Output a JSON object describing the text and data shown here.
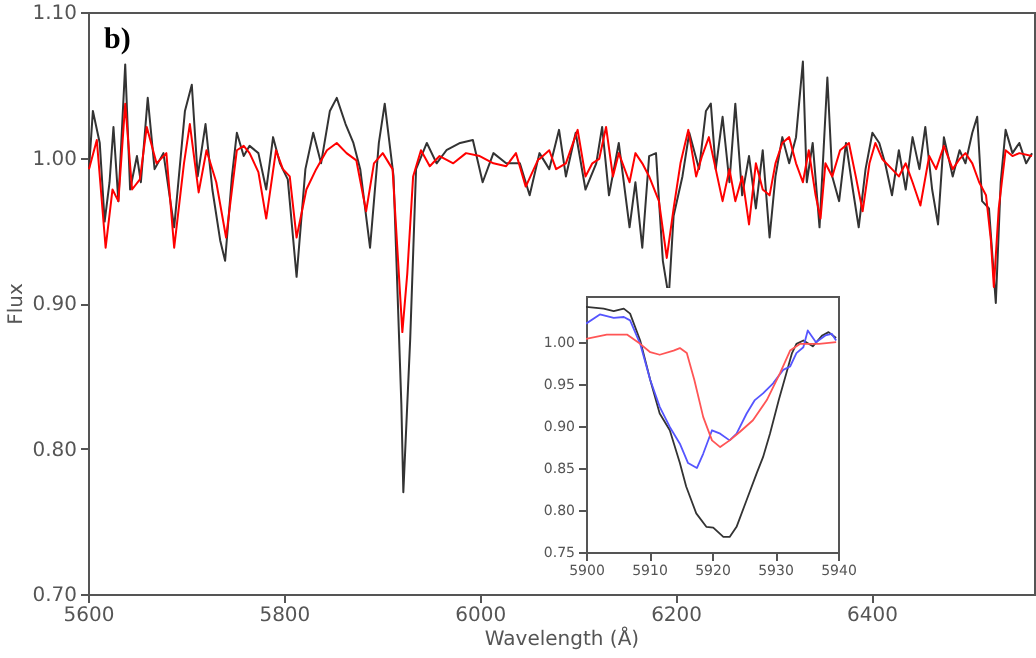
{
  "chart_data": [
    {
      "type": "line",
      "xlabel": "Wavelength (Å)",
      "ylabel": "Flux",
      "annotations": [
        "b)"
      ],
      "xlim": [
        5600,
        6566
      ],
      "xticks": [
        5600,
        5800,
        6000,
        6200,
        6400
      ],
      "ylim": [
        0.7,
        1.1
      ],
      "yticks": [
        {
          "value": 0.7,
          "label": "0.70"
        },
        {
          "value": 0.8,
          "label": "0.80"
        },
        {
          "value": 0.9,
          "label": "0.90"
        },
        {
          "value": 1.0,
          "label": "1.00"
        },
        {
          "value": 1.1,
          "label": "1.10"
        }
      ],
      "series": [
        {
          "color": "#333333",
          "x": [
            5601,
            5605,
            5612,
            5617,
            5622,
            5626,
            5631,
            5638,
            5643,
            5650,
            5654,
            5661,
            5668,
            5677,
            5688,
            5699,
            5706,
            5712,
            5720,
            5727,
            5735,
            5740,
            5747,
            5752,
            5759,
            5765,
            5774,
            5782,
            5789,
            5796,
            5804,
            5813,
            5822,
            5830,
            5838,
            5847,
            5854,
            5863,
            5871,
            5878,
            5888,
            5897,
            5903,
            5912,
            5920,
            5922,
            5929,
            5935,
            5946,
            5956,
            5966,
            5980,
            5993,
            6003,
            6014,
            6027,
            6041,
            6051,
            6061,
            6071,
            6081,
            6088,
            6098,
            6108,
            6119,
            6125,
            6132,
            6142,
            6153,
            6159,
            6166,
            6173,
            6180,
            6187,
            6193,
            6198,
            6207,
            6214,
            6224,
            6231,
            6236,
            6241,
            6248,
            6255,
            6261,
            6268,
            6275,
            6282,
            6289,
            6296,
            6302,
            6309,
            6316,
            6323,
            6330,
            6334,
            6340,
            6347,
            6355,
            6360,
            6367,
            6374,
            6381,
            6387,
            6394,
            6401,
            6408,
            6414,
            6421,
            6428,
            6435,
            6442,
            6449,
            6455,
            6462,
            6468,
            6474,
            6483,
            6490,
            6496,
            6503,
            6508,
            6513,
            6520,
            6527,
            6532,
            6537,
            6544,
            6551,
            6558,
            6564
          ],
          "values": [
            0.992,
            1.032,
            1.01,
            0.956,
            0.983,
            1.021,
            0.97,
            1.064,
            0.978,
            1.001,
            0.983,
            1.041,
            0.992,
            1.003,
            0.952,
            1.032,
            1.05,
            0.987,
            1.023,
            0.978,
            0.943,
            0.929,
            0.987,
            1.017,
            1.001,
            1.008,
            1.003,
            0.978,
            1.014,
            0.996,
            0.985,
            0.918,
            0.992,
            1.017,
            0.996,
            1.032,
            1.041,
            1.023,
            1.01,
            0.992,
            0.938,
            1.01,
            1.037,
            0.987,
            0.83,
            0.77,
            0.875,
            0.992,
            1.01,
            0.996,
            1.005,
            1.01,
            1.012,
            0.983,
            1.003,
            0.996,
            0.996,
            0.974,
            1.003,
            0.992,
            1.019,
            0.987,
            1.017,
            0.978,
            0.996,
            1.021,
            0.974,
            1.01,
            0.952,
            0.983,
            0.938,
            1.001,
            1.003,
            0.929,
            0.904,
            0.96,
            0.987,
            1.017,
            0.992,
            1.032,
            1.037,
            0.992,
            1.028,
            0.983,
            1.037,
            0.974,
            1.001,
            0.965,
            1.005,
            0.945,
            0.987,
            1.014,
            0.996,
            1.014,
            1.066,
            0.983,
            1.01,
            0.952,
            1.055,
            0.987,
            0.97,
            1.01,
            0.978,
            0.952,
            0.992,
            1.017,
            1.01,
            0.996,
            0.974,
            1.005,
            0.978,
            1.014,
            0.992,
            1.021,
            0.978,
            0.954,
            1.014,
            0.987,
            1.005,
            0.996,
            1.017,
            1.028,
            0.97,
            0.965,
            0.9,
            0.983,
            1.019,
            1.003,
            1.01,
            0.996,
            1.003
          ]
        },
        {
          "color": "#ff0000",
          "x": [
            5601,
            5609,
            5618,
            5625,
            5631,
            5638,
            5645,
            5653,
            5660,
            5670,
            5680,
            5688,
            5698,
            5704,
            5713,
            5721,
            5731,
            5741,
            5752,
            5759,
            5765,
            5774,
            5782,
            5792,
            5799,
            5806,
            5813,
            5823,
            5833,
            5844,
            5854,
            5864,
            5874,
            5884,
            5892,
            5901,
            5911,
            5921,
            5926,
            5932,
            5940,
            5949,
            5959,
            5973,
            5986,
            6000,
            6014,
            6027,
            6037,
            6047,
            6060,
            6061,
            6071,
            6078,
            6088,
            6100,
            6108,
            6115,
            6122,
            6129,
            6136,
            6142,
            6153,
            6159,
            6166,
            6173,
            6183,
            6191,
            6198,
            6205,
            6213,
            6221,
            6227,
            6234,
            6241,
            6248,
            6255,
            6261,
            6268,
            6275,
            6282,
            6289,
            6296,
            6302,
            6309,
            6316,
            6323,
            6330,
            6336,
            6343,
            6348,
            6353,
            6360,
            6368,
            6377,
            6384,
            6391,
            6398,
            6404,
            6411,
            6421,
            6428,
            6435,
            6442,
            6450,
            6459,
            6466,
            6474,
            6483,
            6490,
            6496,
            6503,
            6510,
            6517,
            6522,
            6525,
            6530,
            6537,
            6544,
            6551,
            6564
          ],
          "values": [
            0.992,
            1.012,
            0.938,
            0.978,
            0.97,
            1.037,
            0.978,
            0.985,
            1.021,
            0.996,
            1.003,
            0.938,
            0.996,
            1.023,
            0.976,
            1.005,
            0.983,
            0.945,
            1.005,
            1.008,
            1.003,
            0.99,
            0.958,
            1.005,
            0.992,
            0.987,
            0.945,
            0.978,
            0.992,
            1.005,
            1.01,
            1.003,
            0.998,
            0.963,
            0.996,
            1.003,
            0.992,
            0.88,
            0.92,
            0.987,
            1.005,
            0.994,
            1.001,
            0.996,
            1.003,
            1.001,
            0.996,
            0.994,
            1.003,
            0.98,
            0.999,
            0.999,
            1.005,
            0.992,
            0.996,
            1.019,
            0.987,
            0.996,
            0.999,
            1.021,
            0.987,
            1.003,
            0.983,
            1.003,
            0.996,
            0.987,
            0.97,
            0.931,
            0.965,
            0.996,
            1.019,
            0.987,
            1.001,
            1.014,
            0.992,
            0.97,
            0.992,
            0.97,
            0.987,
            0.954,
            0.996,
            0.978,
            0.974,
            0.996,
            1.01,
            1.014,
            0.996,
            0.983,
            1.005,
            0.974,
            0.958,
            0.996,
            0.987,
            1.005,
            1.01,
            0.987,
            0.963,
            0.996,
            1.01,
            0.999,
            0.992,
            0.987,
            0.996,
            0.983,
            0.967,
            1.001,
            0.992,
            1.008,
            0.992,
            0.999,
            1.003,
            0.996,
            0.983,
            0.974,
            0.943,
            0.911,
            0.965,
            1.005,
            1.001,
            1.003,
            1.001
          ]
        }
      ]
    },
    {
      "type": "line",
      "xlim": [
        5900,
        5940
      ],
      "xticks": [
        5900,
        5910,
        5920,
        5930,
        5940
      ],
      "ylim": [
        0.75,
        1.055
      ],
      "yticks": [
        {
          "value": 0.75,
          "label": "0.75"
        },
        {
          "value": 0.8,
          "label": "0.80"
        },
        {
          "value": 0.85,
          "label": "0.85"
        },
        {
          "value": 0.9,
          "label": "0.90"
        },
        {
          "value": 0.95,
          "label": "0.95"
        },
        {
          "value": 1.0,
          "label": "1.00"
        }
      ],
      "series": [
        {
          "color": "#333333",
          "x": [
            5900,
            5902.8,
            5904.4,
            5906,
            5907,
            5908.6,
            5910.2,
            5911.7,
            5913.3,
            5914.9,
            5915.9,
            5917.5,
            5919.1,
            5920.2,
            5921.8,
            5922.8,
            5923.9,
            5925.5,
            5927.1,
            5928.1,
            5929.2,
            5930.6,
            5931.8,
            5932.7,
            5933.4,
            5934.5,
            5936,
            5937.5,
            5938.5,
            5939.7
          ],
          "values": [
            1.042,
            1.04,
            1.037,
            1.04,
            1.034,
            1.002,
            0.955,
            0.915,
            0.895,
            0.856,
            0.828,
            0.796,
            0.78,
            0.779,
            0.768,
            0.768,
            0.78,
            0.812,
            0.844,
            0.863,
            0.891,
            0.931,
            0.963,
            0.987,
            0.998,
            1.002,
            0.995,
            1.008,
            1.012,
            1.005
          ]
        },
        {
          "color": "#5555ff",
          "x": [
            5900,
            5902.2,
            5904.4,
            5906,
            5907,
            5908.6,
            5910.2,
            5911.7,
            5913.3,
            5914.9,
            5916.2,
            5917.6,
            5918.6,
            5920,
            5921.3,
            5922.8,
            5923.9,
            5925.5,
            5926.8,
            5928.1,
            5929.7,
            5931.3,
            5932.4,
            5933.4,
            5934.5,
            5935.2,
            5936.5,
            5938,
            5939,
            5939.7
          ],
          "values": [
            1.022,
            1.033,
            1.029,
            1.03,
            1.026,
            0.998,
            0.955,
            0.923,
            0.899,
            0.879,
            0.856,
            0.85,
            0.867,
            0.895,
            0.891,
            0.883,
            0.891,
            0.915,
            0.931,
            0.939,
            0.951,
            0.967,
            0.971,
            0.987,
            0.994,
            1.014,
            1.0,
            1.008,
            1.01,
            1.002
          ]
        },
        {
          "color": "#ff5555",
          "x": [
            5900,
            5903.3,
            5906.5,
            5908.6,
            5910.2,
            5911.7,
            5913.9,
            5914.9,
            5916,
            5917.2,
            5918.6,
            5920,
            5921.3,
            5922.8,
            5924.4,
            5926.5,
            5928.7,
            5930.8,
            5932.4,
            5934,
            5935.5,
            5937,
            5939.7
          ],
          "values": [
            1.004,
            1.009,
            1.009,
            0.998,
            0.988,
            0.985,
            0.99,
            0.993,
            0.987,
            0.955,
            0.911,
            0.883,
            0.875,
            0.883,
            0.893,
            0.907,
            0.931,
            0.963,
            0.99,
            0.998,
            0.998,
            0.998,
            1.0
          ]
        }
      ]
    }
  ]
}
